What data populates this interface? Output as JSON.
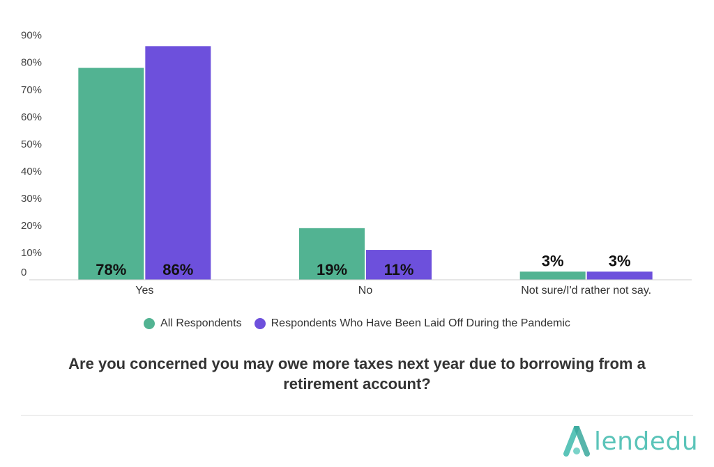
{
  "chart_data": {
    "type": "bar",
    "title": "Are you concerned you may owe more taxes next year due to borrowing from a retirement account?",
    "categories": [
      "Yes",
      "No",
      "Not sure/I'd rather not say."
    ],
    "series": [
      {
        "name": "All Respondents",
        "values": [
          78,
          19,
          3
        ],
        "labels": [
          "78%",
          "19%",
          "3%"
        ],
        "color": "#52b392"
      },
      {
        "name": "Respondents Who Have Been Laid Off During the Pandemic",
        "values": [
          86,
          11,
          3
        ],
        "labels": [
          "86%",
          "11%",
          "3%"
        ],
        "color": "#6d50dc"
      }
    ],
    "y_ticks": [
      {
        "value": 0,
        "label": "0"
      },
      {
        "value": 10,
        "label": "10%"
      },
      {
        "value": 20,
        "label": "20%"
      },
      {
        "value": 30,
        "label": "30%"
      },
      {
        "value": 40,
        "label": "40%"
      },
      {
        "value": 50,
        "label": "50%"
      },
      {
        "value": 60,
        "label": "60%"
      },
      {
        "value": 70,
        "label": "70%"
      },
      {
        "value": 80,
        "label": "80%"
      },
      {
        "value": 90,
        "label": "90%"
      }
    ],
    "ylim": [
      0,
      93
    ],
    "grid": false,
    "legend_position": "bottom-center"
  },
  "brand": {
    "name": "lendedu",
    "color": "#5bc4b9"
  }
}
